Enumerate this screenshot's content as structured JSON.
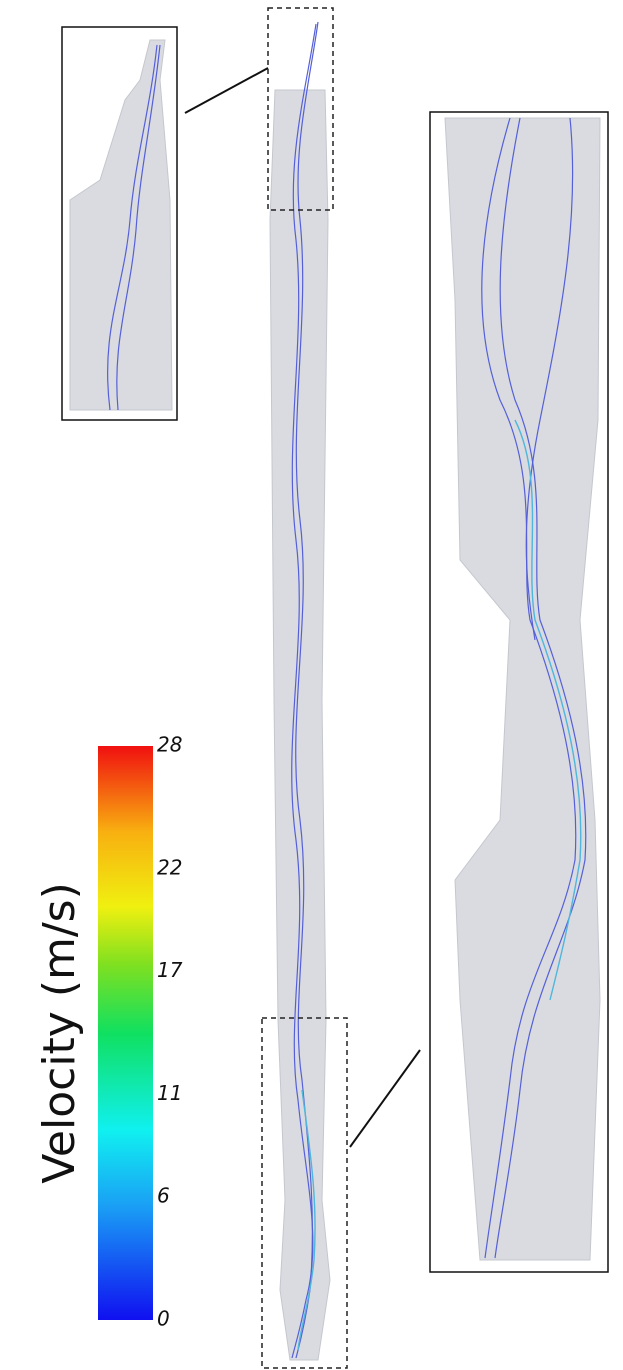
{
  "colorbar": {
    "title": "Velocity (m/s)",
    "range": [
      0,
      28
    ],
    "ticks": [
      0,
      6,
      11,
      17,
      22,
      28
    ]
  }
}
